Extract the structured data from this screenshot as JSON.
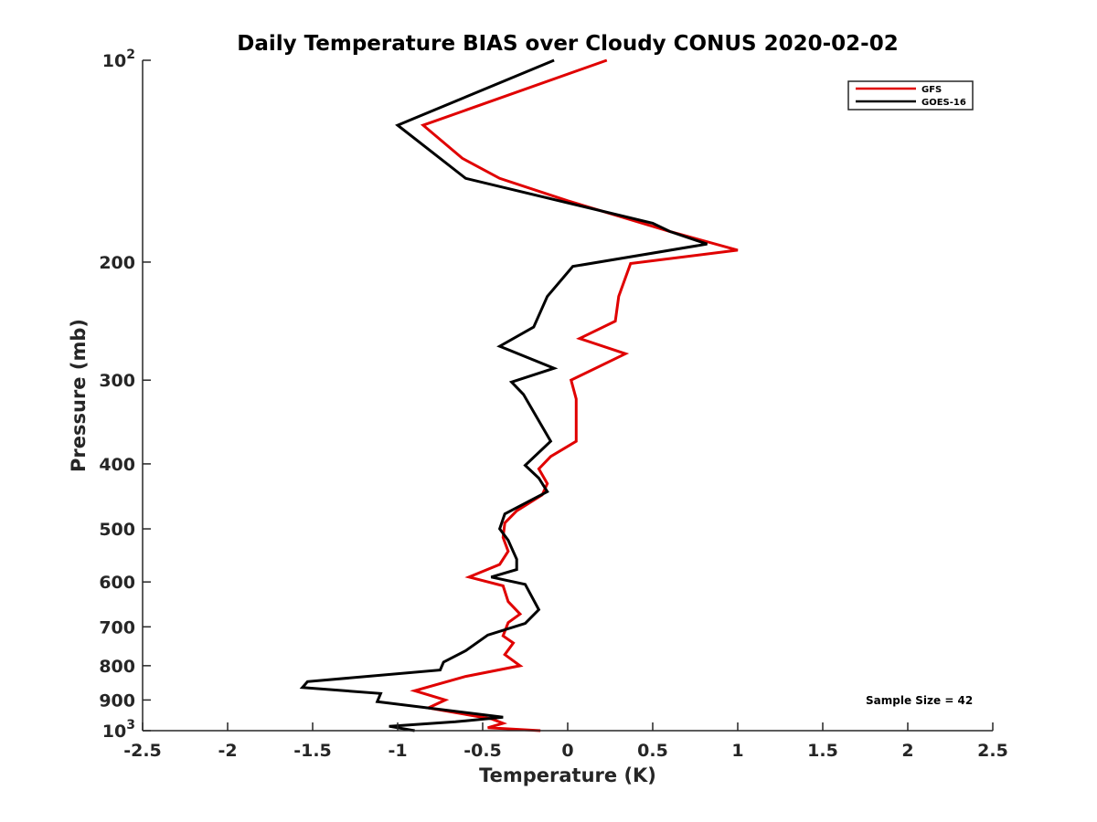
{
  "chart_data": {
    "type": "line",
    "title": "Daily Temperature BIAS over Cloudy CONUS 2020-02-02",
    "xlabel": "Temperature (K)",
    "ylabel": "Pressure (mb)",
    "xlim": [
      -2.5,
      2.5
    ],
    "ylim": [
      100,
      1000
    ],
    "yscale": "log",
    "yreversed": true,
    "xticks": [
      "-2.5",
      "-2",
      "-1.5",
      "-1",
      "-0.5",
      "0",
      "0.5",
      "1",
      "1.5",
      "2",
      "2.5"
    ],
    "yticks": [
      {
        "value": 100,
        "base": "10",
        "exp": "2"
      },
      {
        "value": 200,
        "label": "200"
      },
      {
        "value": 300,
        "label": "300"
      },
      {
        "value": 400,
        "label": "400"
      },
      {
        "value": 500,
        "label": "500"
      },
      {
        "value": 600,
        "label": "600"
      },
      {
        "value": 700,
        "label": "700"
      },
      {
        "value": 800,
        "label": "800"
      },
      {
        "value": 900,
        "label": "900"
      },
      {
        "value": 1000,
        "base": "10",
        "exp": "3"
      }
    ],
    "legend_position": "top-right",
    "grid": false,
    "annotation": "Sample Size = 42",
    "series": [
      {
        "name": "GFS",
        "color": "#e00000",
        "points": [
          [
            0.23,
            100
          ],
          [
            -0.85,
            125
          ],
          [
            -0.62,
            140
          ],
          [
            -0.4,
            150
          ],
          [
            0.0,
            162
          ],
          [
            0.6,
            180
          ],
          [
            1.0,
            192
          ],
          [
            0.37,
            201
          ],
          [
            0.3,
            225
          ],
          [
            0.28,
            245
          ],
          [
            0.07,
            260
          ],
          [
            0.34,
            274
          ],
          [
            0.02,
            300
          ],
          [
            0.05,
            320
          ],
          [
            0.05,
            370
          ],
          [
            -0.1,
            390
          ],
          [
            -0.17,
            407
          ],
          [
            -0.12,
            428
          ],
          [
            -0.15,
            445
          ],
          [
            -0.3,
            470
          ],
          [
            -0.37,
            490
          ],
          [
            -0.38,
            515
          ],
          [
            -0.35,
            540
          ],
          [
            -0.4,
            565
          ],
          [
            -0.58,
            590
          ],
          [
            -0.38,
            608
          ],
          [
            -0.35,
            642
          ],
          [
            -0.28,
            670
          ],
          [
            -0.35,
            690
          ],
          [
            -0.38,
            722
          ],
          [
            -0.32,
            740
          ],
          [
            -0.37,
            770
          ],
          [
            -0.28,
            800
          ],
          [
            -0.6,
            830
          ],
          [
            -0.9,
            872
          ],
          [
            -0.72,
            900
          ],
          [
            -0.82,
            925
          ],
          [
            -0.45,
            960
          ],
          [
            -0.38,
            975
          ],
          [
            -0.47,
            990
          ],
          [
            -0.16,
            1000
          ]
        ]
      },
      {
        "name": "GOES-16",
        "color": "#000000",
        "points": [
          [
            -0.08,
            100
          ],
          [
            -1.0,
            125
          ],
          [
            -0.6,
            150
          ],
          [
            0.5,
            175
          ],
          [
            0.6,
            180
          ],
          [
            0.82,
            188
          ],
          [
            0.03,
            203
          ],
          [
            -0.12,
            225
          ],
          [
            -0.2,
            250
          ],
          [
            -0.4,
            267
          ],
          [
            -0.08,
            288
          ],
          [
            -0.33,
            302
          ],
          [
            -0.26,
            315
          ],
          [
            -0.1,
            370
          ],
          [
            -0.25,
            402
          ],
          [
            -0.17,
            420
          ],
          [
            -0.12,
            440
          ],
          [
            -0.37,
            475
          ],
          [
            -0.4,
            500
          ],
          [
            -0.35,
            520
          ],
          [
            -0.3,
            555
          ],
          [
            -0.3,
            575
          ],
          [
            -0.45,
            590
          ],
          [
            -0.25,
            605
          ],
          [
            -0.17,
            660
          ],
          [
            -0.25,
            692
          ],
          [
            -0.47,
            720
          ],
          [
            -0.6,
            760
          ],
          [
            -0.73,
            790
          ],
          [
            -0.75,
            812
          ],
          [
            -1.53,
            845
          ],
          [
            -1.56,
            862
          ],
          [
            -1.1,
            880
          ],
          [
            -1.12,
            905
          ],
          [
            -0.38,
            955
          ],
          [
            -0.66,
            970
          ],
          [
            -1.05,
            985
          ],
          [
            -0.9,
            1000
          ]
        ]
      }
    ]
  }
}
